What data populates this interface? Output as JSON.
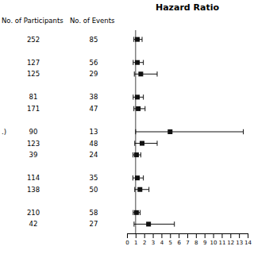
{
  "chart_data": {
    "type": "forest",
    "title": "Hazard Ratio",
    "column_labels": [
      "No. of Participants",
      "No. of Events"
    ],
    "participants": [
      252,
      null,
      127,
      125,
      null,
      81,
      171,
      null,
      90,
      123,
      39,
      null,
      114,
      138,
      null,
      210,
      42
    ],
    "events": [
      85,
      null,
      56,
      29,
      null,
      38,
      47,
      null,
      13,
      48,
      24,
      null,
      35,
      50,
      null,
      58,
      27
    ],
    "values": [
      1.2,
      null,
      1.2,
      1.6,
      null,
      1.2,
      1.3,
      null,
      5.0,
      1.75,
      1.1,
      null,
      1.2,
      1.5,
      null,
      1.1,
      2.5
    ],
    "ci_lo": [
      0.8,
      null,
      0.72,
      0.85,
      null,
      0.72,
      0.8,
      null,
      1.0,
      0.9,
      0.7,
      null,
      0.68,
      0.9,
      null,
      0.72,
      0.82
    ],
    "ci_hi": [
      1.75,
      null,
      1.9,
      3.5,
      null,
      1.9,
      2.1,
      null,
      13.5,
      3.5,
      1.6,
      null,
      1.9,
      2.55,
      null,
      1.52,
      5.5
    ],
    "annotations": [
      {
        "text": ".)",
        "row": 8
      }
    ],
    "reference_line": 1.0,
    "orientation": "horizontal",
    "color": "#111111",
    "xlim": [
      0,
      14
    ],
    "xticks": [
      0,
      1,
      2,
      3,
      4,
      5,
      6,
      7,
      8,
      9,
      10,
      11,
      12,
      13,
      14
    ],
    "tick_labels": "x",
    "grid": false
  }
}
